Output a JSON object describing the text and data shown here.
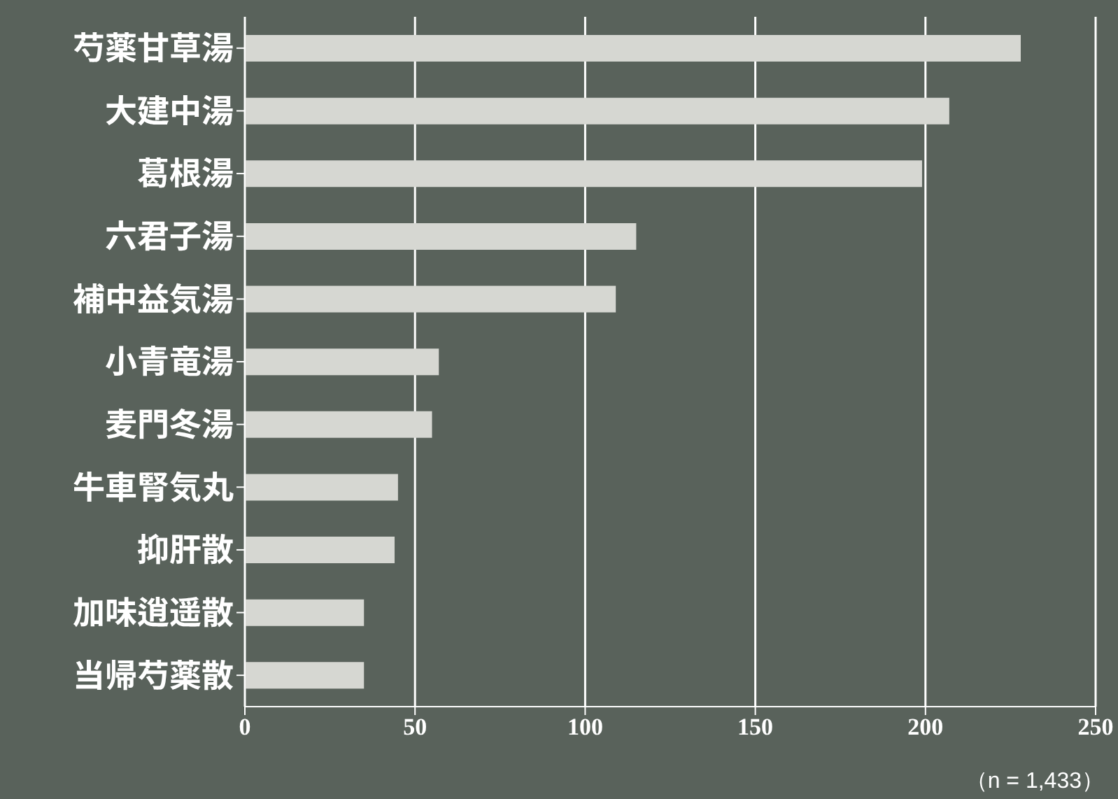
{
  "chart_data": {
    "type": "bar",
    "orientation": "horizontal",
    "categories": [
      "芍薬甘草湯",
      "大建中湯",
      "葛根湯",
      "六君子湯",
      "補中益気湯",
      "小青竜湯",
      "麦門冬湯",
      "牛車腎気丸",
      "抑肝散",
      "加味逍遥散",
      "当帰芍薬散"
    ],
    "values": [
      228,
      207,
      199,
      115,
      109,
      57,
      55,
      45,
      44,
      35,
      35
    ],
    "color": "#d6d7d2",
    "xlim": [
      0,
      250
    ],
    "xticks": [
      0,
      50,
      100,
      150,
      200,
      250
    ],
    "grid": "x",
    "annotations": [
      "（n = 1,433）"
    ]
  }
}
